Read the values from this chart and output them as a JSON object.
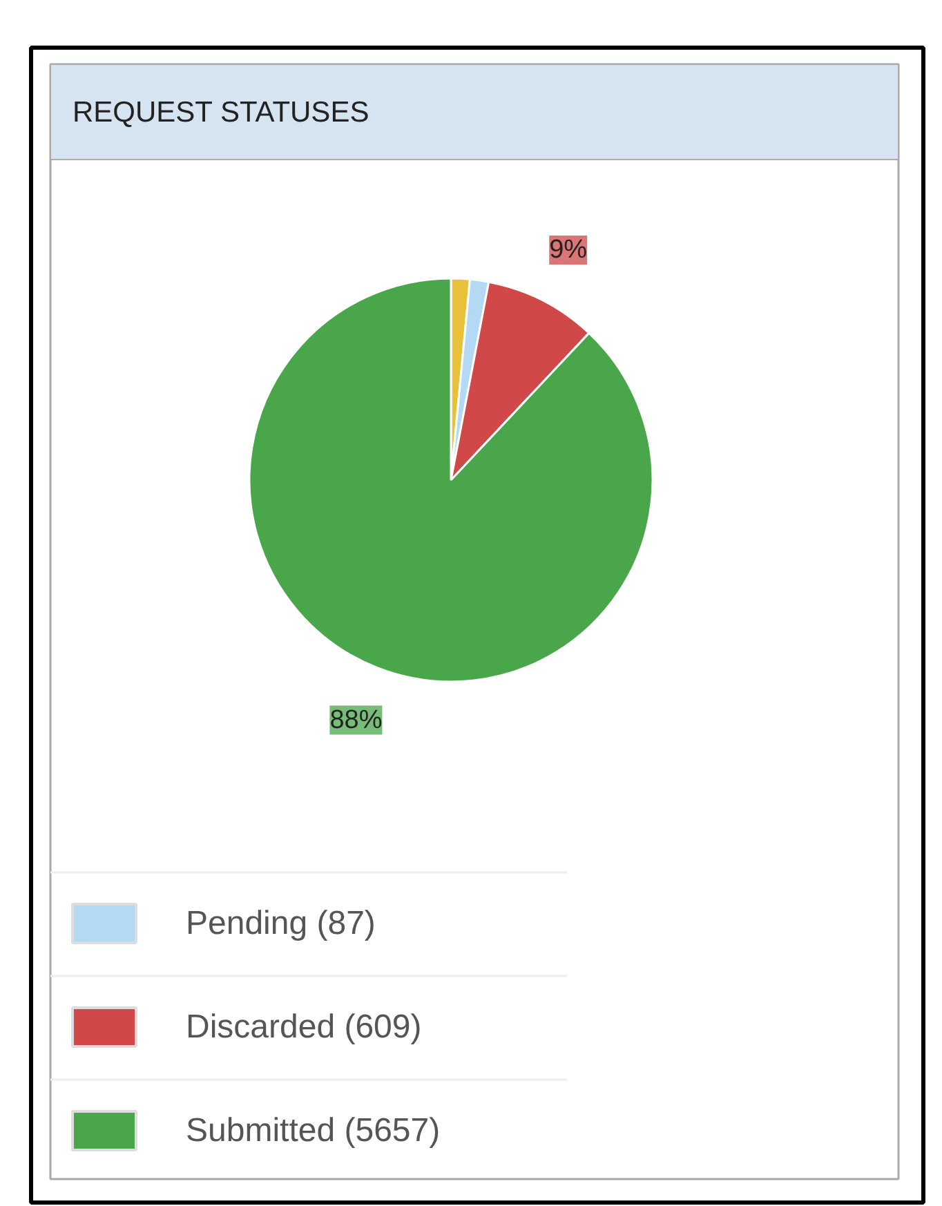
{
  "chart_data": {
    "type": "pie",
    "title": "REQUEST STATUSES",
    "categories": [
      null,
      "Pending (87)",
      "Discarded (609)",
      "Submitted (5657)"
    ],
    "values": [
      1.5,
      1.5,
      9,
      88
    ],
    "colors": [
      "#e8c03a",
      "#b3d9f5",
      "#d04848",
      "#4aa64a"
    ],
    "value_labels": [
      null,
      null,
      "9%",
      "88%"
    ],
    "legend": "bottom left"
  }
}
